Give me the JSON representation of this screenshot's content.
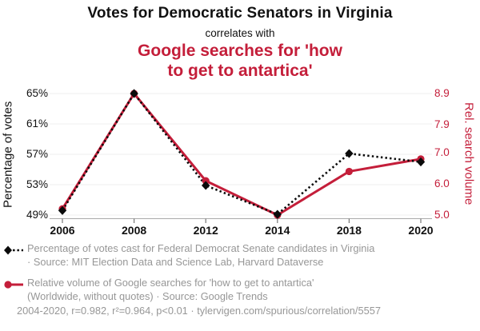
{
  "header": {
    "title": "Votes for Democratic Senators in Virginia",
    "connector": "correlates with",
    "subtitle": "Google searches for 'how\nto get to antartica'"
  },
  "colors": {
    "accent_red": "#C41E3A",
    "series_black": "#0b0b0b",
    "legend_gray": "#979797",
    "gridline": "#efefef",
    "axis_line": "#aaaaaa"
  },
  "chart_data": {
    "type": "line",
    "title": "Votes for Democratic Senators in Virginia correlates with Google searches for 'how to get to antartica'",
    "categories": [
      "2006",
      "2008",
      "2012",
      "2014",
      "2018",
      "2020"
    ],
    "series": [
      {
        "name": "Percentage of votes cast for Federal Democrat Senate candidates in Virginia",
        "axis": "left",
        "color": "#0b0b0b",
        "style": "dotted",
        "marker": "diamond",
        "values": [
          49.6,
          65.0,
          52.9,
          49.1,
          57.1,
          56.0
        ]
      },
      {
        "name": "Relative volume of Google searches for 'how to get to antartica'",
        "axis": "right",
        "color": "#C41E3A",
        "style": "solid",
        "marker": "circle",
        "values": [
          5.2,
          8.9,
          6.1,
          5.0,
          6.4,
          6.8
        ]
      }
    ],
    "left_axis": {
      "label": "Percentage of votes",
      "ticks": [
        "49%",
        "53%",
        "57%",
        "61%",
        "65%"
      ],
      "tick_values": [
        49,
        53,
        57,
        61,
        65
      ],
      "range": [
        49,
        65
      ]
    },
    "right_axis": {
      "label": "Rel. search volume",
      "ticks": [
        "5.0",
        "6.0",
        "7.0",
        "7.9",
        "8.9"
      ],
      "tick_values": [
        5.0,
        6.0,
        7.0,
        7.9,
        8.9
      ],
      "range": [
        5.0,
        8.9
      ]
    },
    "grid": true,
    "legend_position": "bottom"
  },
  "legend": {
    "series1_text": "Percentage of votes cast for Federal Democrat Senate candidates in Virginia\n· Source: MIT Election Data and Science Lab, Harvard Dataverse",
    "series2_text": "Relative volume of Google searches for 'how to get to antartica'\n(Worldwide, without quotes) · Source: Google Trends"
  },
  "footer": {
    "stats": "2004-2020, r=0.982, r²=0.964, p<0.01",
    "separator": " · ",
    "link": "tylervigen.com/spurious/correlation/5557"
  }
}
